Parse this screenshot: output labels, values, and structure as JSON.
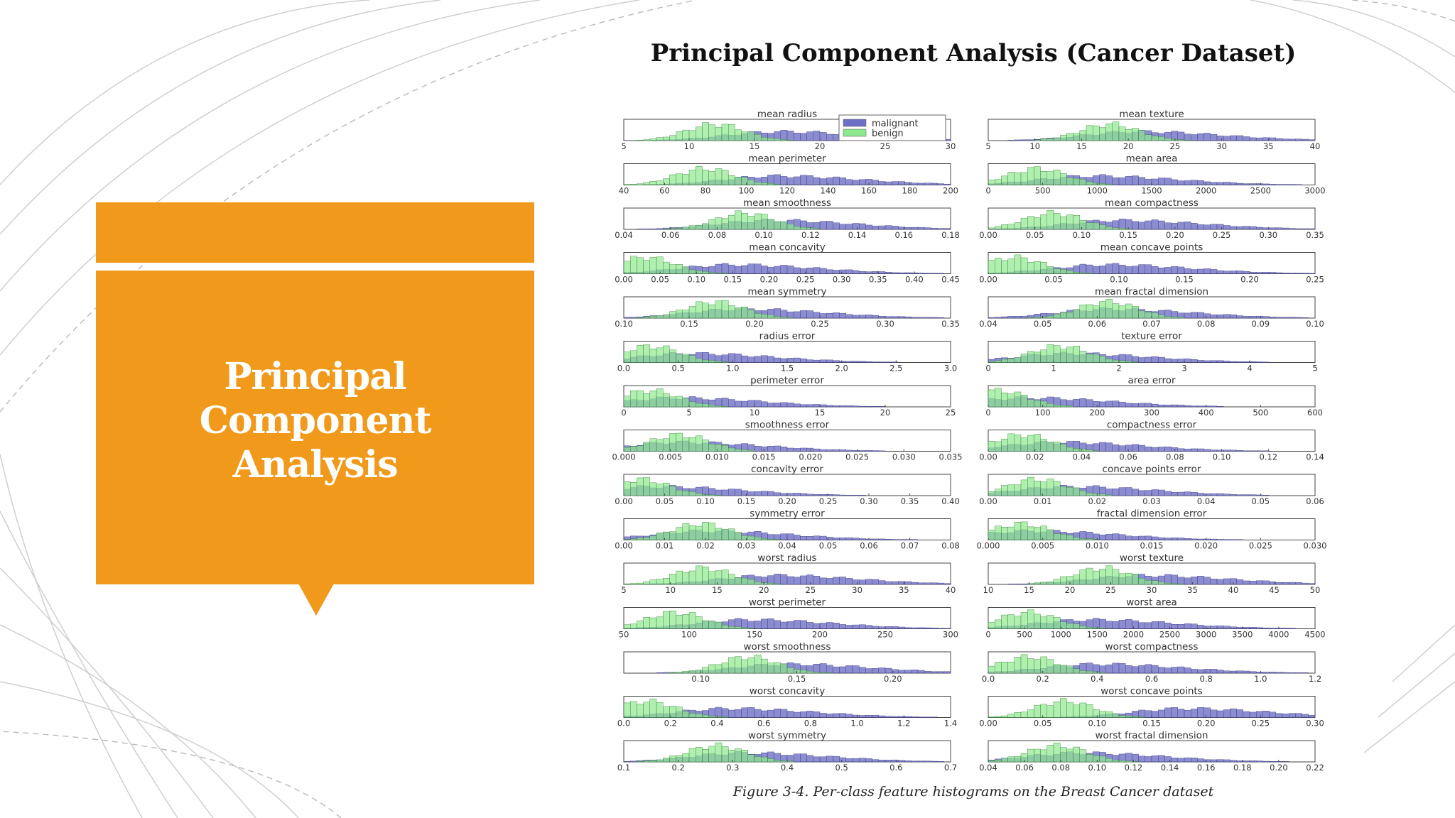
{
  "slide": {
    "title": "Principal Component Analysis (Cancer Dataset)",
    "box_title_lines": [
      "Principal",
      "Component",
      "Analysis"
    ],
    "caption": "Figure 3-4. Per-class feature histograms on the Breast Cancer dataset",
    "accent_color": "#F0991A"
  },
  "chart_data": {
    "type": "histogram-grid",
    "legend": [
      {
        "name": "malignant",
        "color": "#6f6fc4"
      },
      {
        "name": "benign",
        "color": "#8ee88e"
      }
    ],
    "legend_position": "top-right of first panel",
    "panels": [
      {
        "title": "mean radius",
        "ticks": [
          "5",
          "10",
          "15",
          "20",
          "25",
          "30"
        ],
        "range": [
          5,
          30
        ],
        "benign_peak": 12,
        "malignant_peak": 17
      },
      {
        "title": "mean texture",
        "ticks": [
          "5",
          "10",
          "15",
          "20",
          "25",
          "30",
          "35",
          "40"
        ],
        "range": [
          5,
          40
        ],
        "benign_peak": 18,
        "malignant_peak": 21
      },
      {
        "title": "mean perimeter",
        "ticks": [
          "40",
          "60",
          "80",
          "100",
          "120",
          "140",
          "160",
          "180",
          "200"
        ],
        "range": [
          40,
          200
        ],
        "benign_peak": 80,
        "malignant_peak": 115
      },
      {
        "title": "mean area",
        "ticks": [
          "0",
          "500",
          "1000",
          "1500",
          "2000",
          "2500",
          "3000"
        ],
        "range": [
          0,
          3000
        ],
        "benign_peak": 450,
        "malignant_peak": 950
      },
      {
        "title": "mean smoothness",
        "ticks": [
          "0.04",
          "0.06",
          "0.08",
          "0.10",
          "0.12",
          "0.14",
          "0.16",
          "0.18"
        ],
        "range": [
          0.04,
          0.18
        ],
        "benign_peak": 0.092,
        "malignant_peak": 0.103
      },
      {
        "title": "mean compactness",
        "ticks": [
          "0.00",
          "0.05",
          "0.10",
          "0.15",
          "0.20",
          "0.25",
          "0.30",
          "0.35"
        ],
        "range": [
          0,
          0.35
        ],
        "benign_peak": 0.07,
        "malignant_peak": 0.14
      },
      {
        "title": "mean concavity",
        "ticks": [
          "0.00",
          "0.05",
          "0.10",
          "0.15",
          "0.20",
          "0.25",
          "0.30",
          "0.35",
          "0.40",
          "0.45"
        ],
        "range": [
          0,
          0.45
        ],
        "benign_peak": 0.03,
        "malignant_peak": 0.15
      },
      {
        "title": "mean concave points",
        "ticks": [
          "0.00",
          "0.05",
          "0.10",
          "0.15",
          "0.20",
          "0.25"
        ],
        "range": [
          0,
          0.25
        ],
        "benign_peak": 0.02,
        "malignant_peak": 0.09
      },
      {
        "title": "mean symmetry",
        "ticks": [
          "0.10",
          "0.15",
          "0.20",
          "0.25",
          "0.30",
          "0.35"
        ],
        "range": [
          0.1,
          0.35
        ],
        "benign_peak": 0.17,
        "malignant_peak": 0.19
      },
      {
        "title": "mean fractal dimension",
        "ticks": [
          "0.04",
          "0.05",
          "0.06",
          "0.07",
          "0.08",
          "0.09",
          "0.10"
        ],
        "range": [
          0.04,
          0.1
        ],
        "benign_peak": 0.062,
        "malignant_peak": 0.062
      },
      {
        "title": "radius error",
        "ticks": [
          "0.0",
          "0.5",
          "1.0",
          "1.5",
          "2.0",
          "2.5",
          "3.0"
        ],
        "range": [
          0,
          3
        ],
        "benign_peak": 0.25,
        "malignant_peak": 0.6
      },
      {
        "title": "texture error",
        "ticks": [
          "0",
          "1",
          "2",
          "3",
          "4",
          "5"
        ],
        "range": [
          0,
          5
        ],
        "benign_peak": 1.1,
        "malignant_peak": 1.2
      },
      {
        "title": "perimeter error",
        "ticks": [
          "0",
          "5",
          "10",
          "15",
          "20",
          "25"
        ],
        "range": [
          0,
          25
        ],
        "benign_peak": 2,
        "malignant_peak": 4
      },
      {
        "title": "area error",
        "ticks": [
          "0",
          "100",
          "200",
          "300",
          "400",
          "500",
          "600"
        ],
        "range": [
          0,
          600
        ],
        "benign_peak": 18,
        "malignant_peak": 70
      },
      {
        "title": "smoothness error",
        "ticks": [
          "0.000",
          "0.005",
          "0.010",
          "0.015",
          "0.020",
          "0.025",
          "0.030",
          "0.035"
        ],
        "range": [
          0,
          0.035
        ],
        "benign_peak": 0.006,
        "malignant_peak": 0.006
      },
      {
        "title": "compactness error",
        "ticks": [
          "0.00",
          "0.02",
          "0.04",
          "0.06",
          "0.08",
          "0.10",
          "0.12",
          "0.14"
        ],
        "range": [
          0,
          0.14
        ],
        "benign_peak": 0.015,
        "malignant_peak": 0.03
      },
      {
        "title": "concavity error",
        "ticks": [
          "0.00",
          "0.05",
          "0.10",
          "0.15",
          "0.20",
          "0.25",
          "0.30",
          "0.35",
          "0.40"
        ],
        "range": [
          0,
          0.4
        ],
        "benign_peak": 0.02,
        "malignant_peak": 0.04
      },
      {
        "title": "concave points error",
        "ticks": [
          "0.00",
          "0.01",
          "0.02",
          "0.03",
          "0.04",
          "0.05",
          "0.06"
        ],
        "range": [
          0,
          0.06
        ],
        "benign_peak": 0.009,
        "malignant_peak": 0.015
      },
      {
        "title": "symmetry error",
        "ticks": [
          "0.00",
          "0.01",
          "0.02",
          "0.03",
          "0.04",
          "0.05",
          "0.06",
          "0.07",
          "0.08"
        ],
        "range": [
          0,
          0.08
        ],
        "benign_peak": 0.019,
        "malignant_peak": 0.02
      },
      {
        "title": "fractal dimension error",
        "ticks": [
          "0.000",
          "0.005",
          "0.010",
          "0.015",
          "0.020",
          "0.025",
          "0.030"
        ],
        "range": [
          0,
          0.03
        ],
        "benign_peak": 0.003,
        "malignant_peak": 0.004
      },
      {
        "title": "worst radius",
        "ticks": [
          "5",
          "10",
          "15",
          "20",
          "25",
          "30",
          "35",
          "40"
        ],
        "range": [
          5,
          40
        ],
        "benign_peak": 13.5,
        "malignant_peak": 21
      },
      {
        "title": "worst texture",
        "ticks": [
          "10",
          "15",
          "20",
          "25",
          "30",
          "35",
          "40",
          "45",
          "50"
        ],
        "range": [
          10,
          50
        ],
        "benign_peak": 24,
        "malignant_peak": 29
      },
      {
        "title": "worst perimeter",
        "ticks": [
          "50",
          "100",
          "150",
          "200",
          "250",
          "300"
        ],
        "range": [
          50,
          300
        ],
        "benign_peak": 90,
        "malignant_peak": 145
      },
      {
        "title": "worst area",
        "ticks": [
          "0",
          "500",
          "1000",
          "1500",
          "2000",
          "2500",
          "3000",
          "3500",
          "4000",
          "4500"
        ],
        "range": [
          0,
          4500
        ],
        "benign_peak": 550,
        "malignant_peak": 1400
      },
      {
        "title": "worst smoothness",
        "ticks": [
          "0.10",
          "0.15",
          "0.20"
        ],
        "range": [
          0.06,
          0.23
        ],
        "benign_peak": 0.125,
        "malignant_peak": 0.145
      },
      {
        "title": "worst compactness",
        "ticks": [
          "0.0",
          "0.2",
          "0.4",
          "0.6",
          "0.8",
          "1.0",
          "1.2"
        ],
        "range": [
          0,
          1.2
        ],
        "benign_peak": 0.15,
        "malignant_peak": 0.4
      },
      {
        "title": "worst concavity",
        "ticks": [
          "0.0",
          "0.2",
          "0.4",
          "0.6",
          "0.8",
          "1.0",
          "1.2",
          "1.4"
        ],
        "range": [
          0,
          1.4
        ],
        "benign_peak": 0.1,
        "malignant_peak": 0.45
      },
      {
        "title": "worst concave points",
        "ticks": [
          "0.00",
          "0.05",
          "0.10",
          "0.15",
          "0.20",
          "0.25",
          "0.30"
        ],
        "range": [
          0,
          0.3
        ],
        "benign_peak": 0.07,
        "malignant_peak": 0.18
      },
      {
        "title": "worst symmetry",
        "ticks": [
          "0.1",
          "0.2",
          "0.3",
          "0.4",
          "0.5",
          "0.6",
          "0.7"
        ],
        "range": [
          0.1,
          0.7
        ],
        "benign_peak": 0.27,
        "malignant_peak": 0.32
      },
      {
        "title": "worst fractal dimension",
        "ticks": [
          "0.04",
          "0.06",
          "0.08",
          "0.10",
          "0.12",
          "0.14",
          "0.16",
          "0.18",
          "0.20",
          "0.22"
        ],
        "range": [
          0.04,
          0.22
        ],
        "benign_peak": 0.078,
        "malignant_peak": 0.09
      }
    ]
  }
}
